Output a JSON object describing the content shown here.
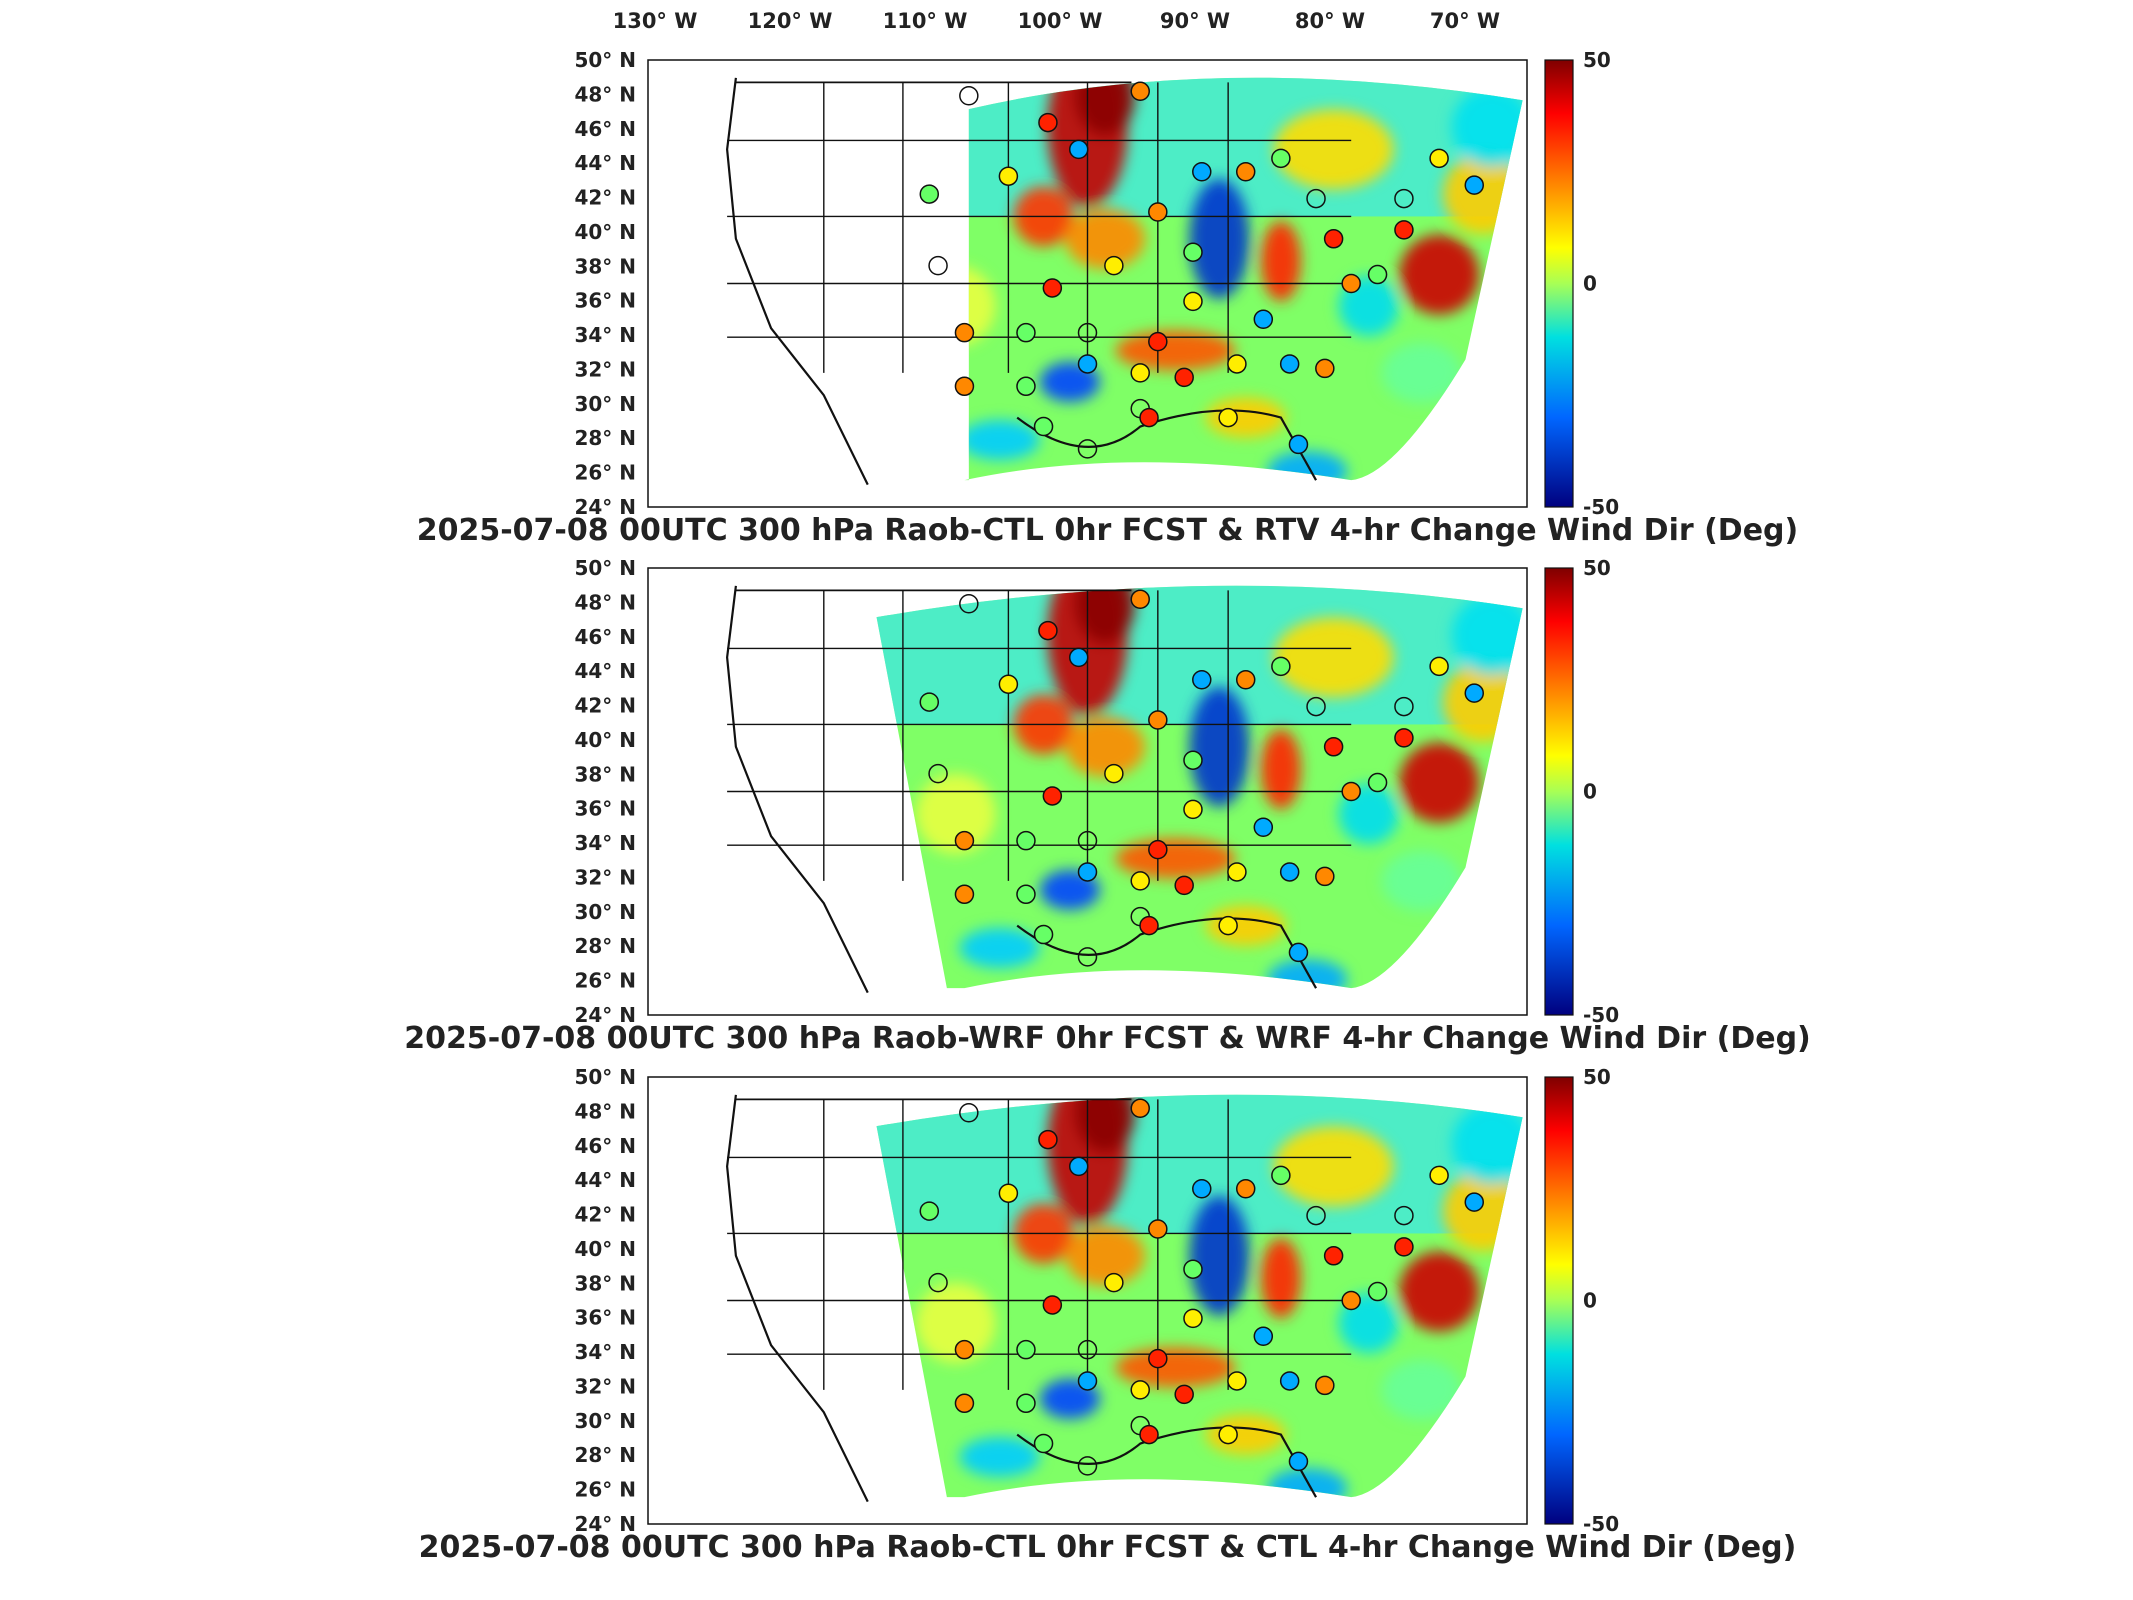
{
  "lon_labels": [
    "130° W",
    "120° W",
    "110° W",
    "100° W",
    "90° W",
    "80° W",
    "70° W"
  ],
  "lat_labels": [
    "50° N",
    "48° N",
    "46° N",
    "44° N",
    "42° N",
    "40° N",
    "38° N",
    "36° N",
    "34° N",
    "32° N",
    "30° N",
    "28° N",
    "26° N",
    "24° N"
  ],
  "colorbar": {
    "max_label": "50",
    "mid_label": "0",
    "min_label": "-50",
    "max": 50,
    "min": -50
  },
  "panels": [
    {
      "title": "2025-07-08 00UTC 300 hPa Raob-CTL 0hr FCST & RTV 4-hr Change Wind Dir (Deg)",
      "domain": "small"
    },
    {
      "title": "2025-07-08 00UTC 300 hPa Raob-WRF 0hr FCST & WRF 4-hr Change Wind Dir (Deg)",
      "domain": "large"
    },
    {
      "title": "2025-07-08 00UTC 300 hPa Raob-CTL 0hr FCST & CTL 4-hr Change Wind Dir (Deg)",
      "domain": "large"
    }
  ],
  "colors": {
    "high": "#8b0000",
    "mid": "#f2e600",
    "low": "#00007f",
    "outline": "#111111"
  }
}
